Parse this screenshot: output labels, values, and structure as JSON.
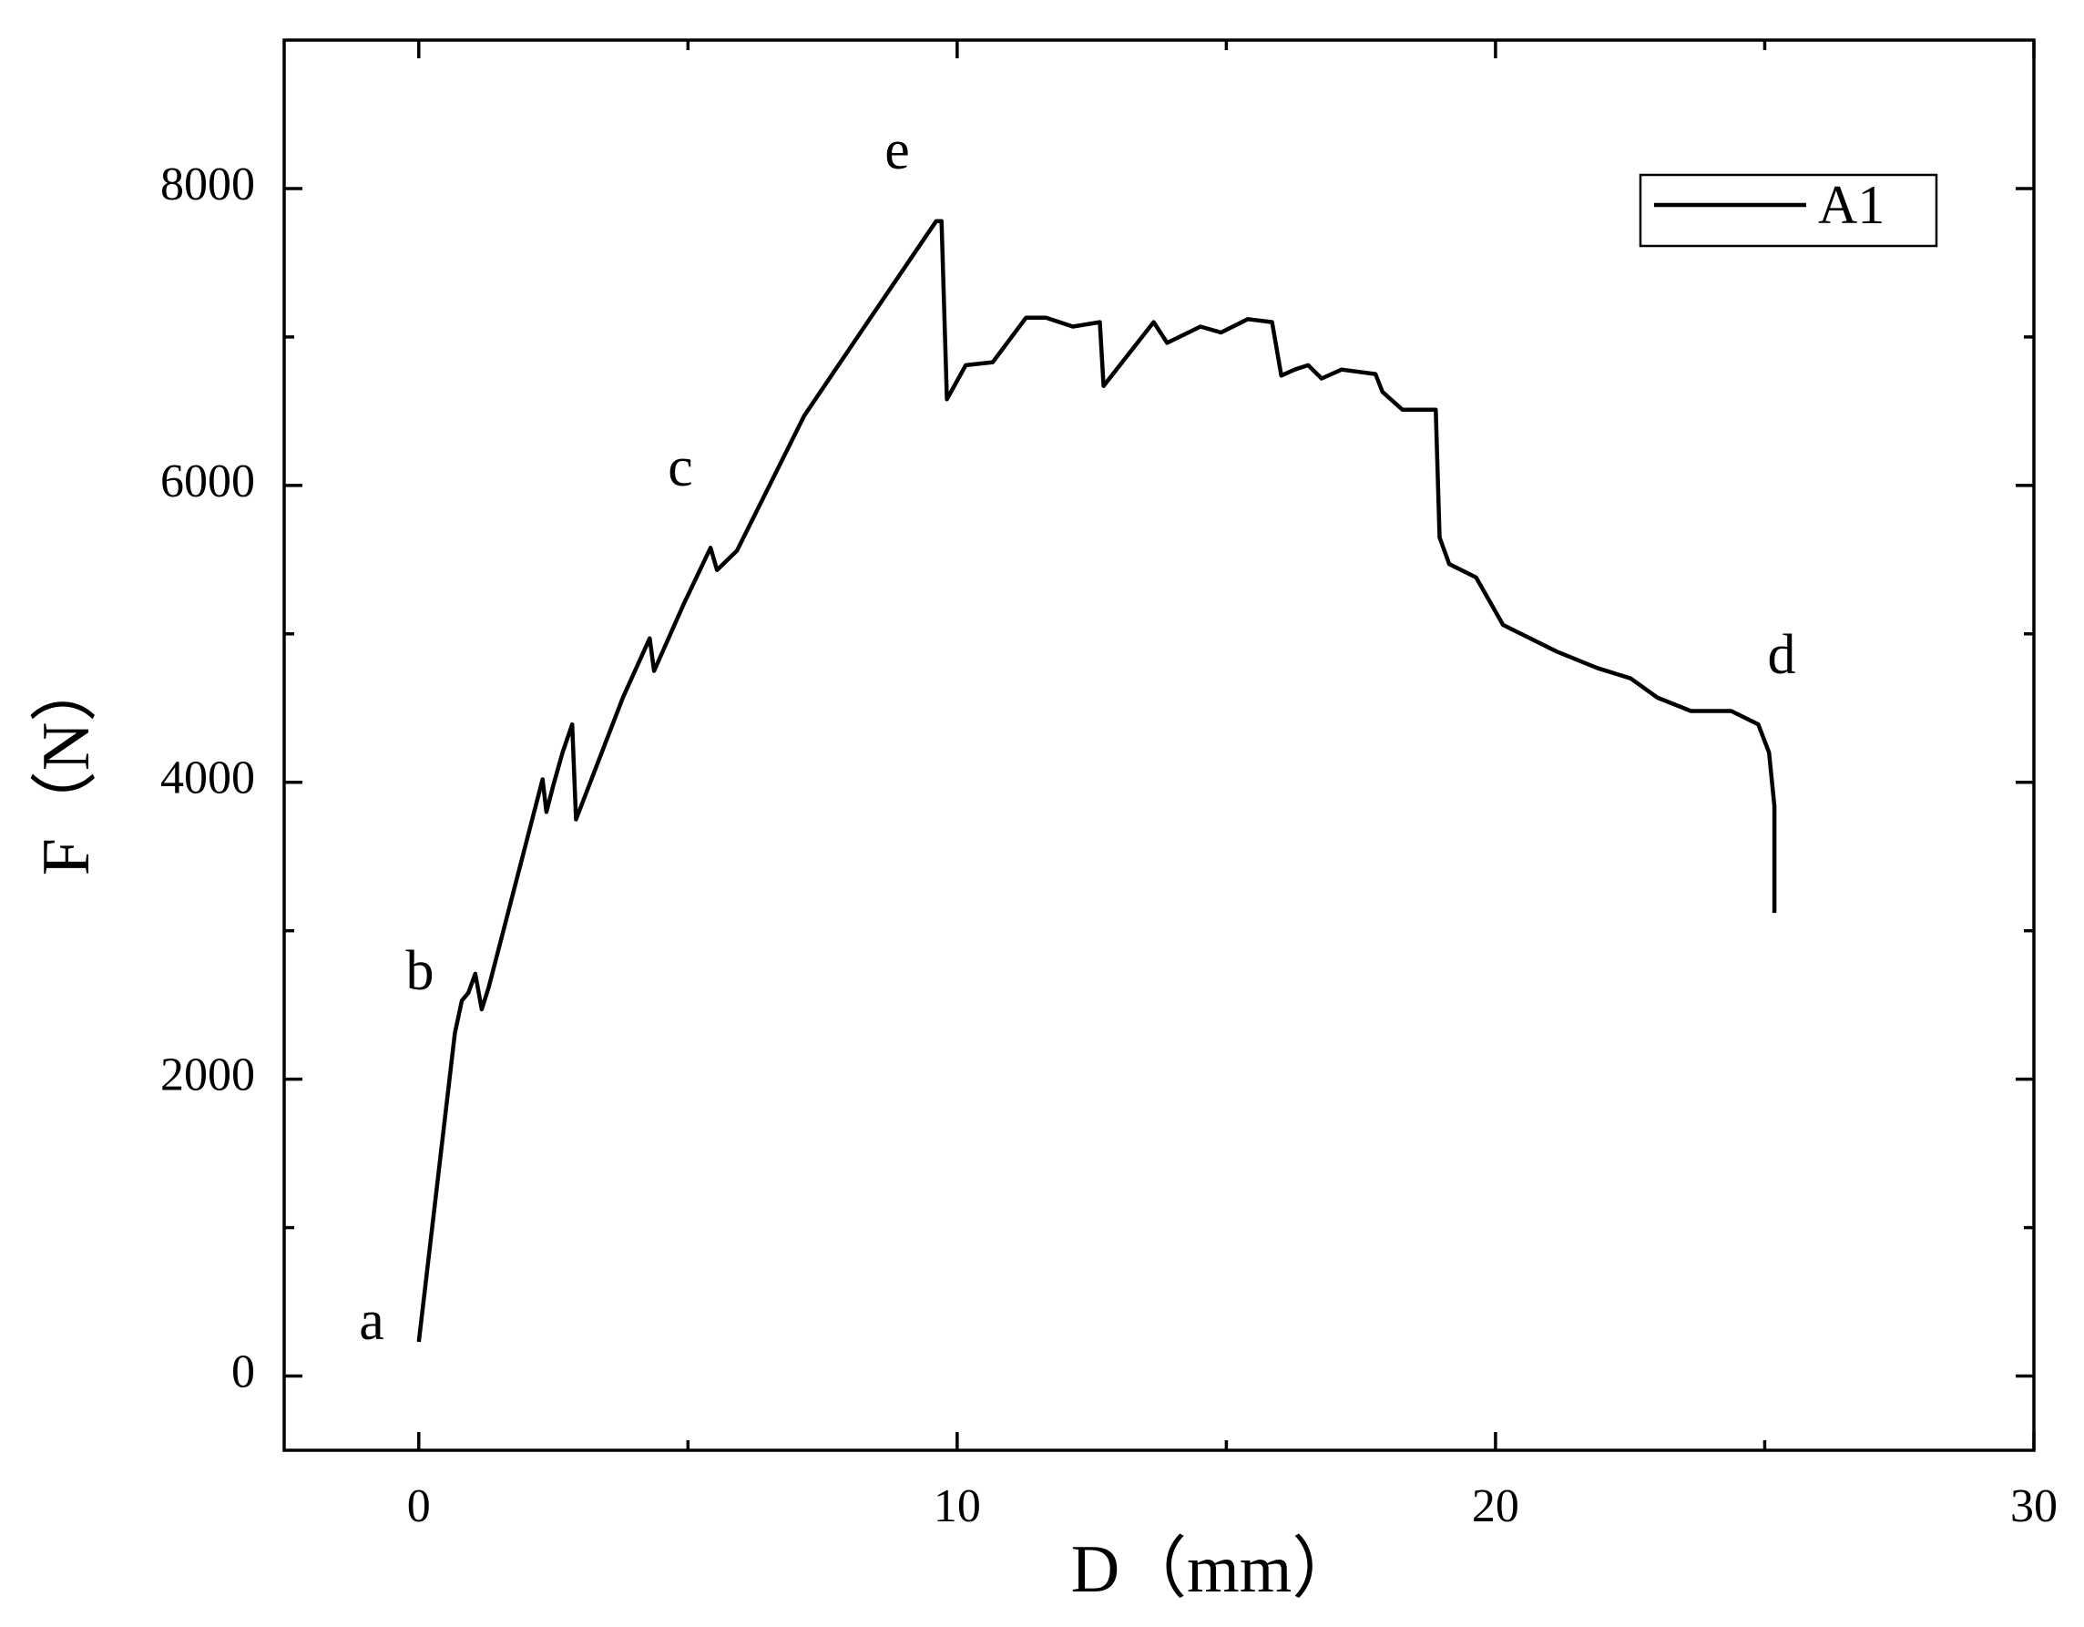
{
  "chart_data": {
    "type": "line",
    "xlabel": "D（mm）",
    "ylabel": "F（N）",
    "x": [
      0,
      0.67,
      0.8,
      0.92,
      1.05,
      1.17,
      1.3,
      2.3,
      2.37,
      2.5,
      2.67,
      2.85,
      2.92,
      3.79,
      4.29,
      4.37,
      4.92,
      5.42,
      5.54,
      5.91,
      7.16,
      8.41,
      9.61,
      9.71,
      9.81,
      10.16,
      10.66,
      11.28,
      11.65,
      12.15,
      12.65,
      12.72,
      13.65,
      13.9,
      14.52,
      14.9,
      15.4,
      15.85,
      16.02,
      16.27,
      16.52,
      16.77,
      17.14,
      17.77,
      17.9,
      18.27,
      18.89,
      18.96,
      19.14,
      19.64,
      20.14,
      21.14,
      21.89,
      22.51,
      23.01,
      23.63,
      24.38,
      24.88,
      25.08,
      25.18,
      25.18
    ],
    "series": [
      {
        "name": "A1",
        "color": "#000000",
        "values": [
          230,
          2310,
          2530,
          2580,
          2710,
          2470,
          2620,
          4020,
          3800,
          3980,
          4200,
          4390,
          3750,
          4570,
          4970,
          4750,
          5200,
          5580,
          5430,
          5560,
          6470,
          7140,
          7780,
          7780,
          6580,
          6810,
          6830,
          7130,
          7130,
          7070,
          7100,
          6670,
          7100,
          6960,
          7070,
          7030,
          7120,
          7100,
          6740,
          6780,
          6810,
          6720,
          6780,
          6750,
          6630,
          6510,
          6510,
          5650,
          5470,
          5380,
          5060,
          4880,
          4770,
          4700,
          4570,
          4480,
          4480,
          4390,
          4200,
          3840,
          3120
        ]
      }
    ],
    "annotations": [
      "a",
      "b",
      "c",
      "d",
      "e"
    ],
    "xlim": [
      -2.5,
      30
    ],
    "ylim": [
      -500,
      9000
    ],
    "xticks": [
      0,
      10,
      20,
      30
    ],
    "yticks": [
      0,
      2000,
      4000,
      6000,
      8000
    ],
    "legend": "upper right"
  }
}
